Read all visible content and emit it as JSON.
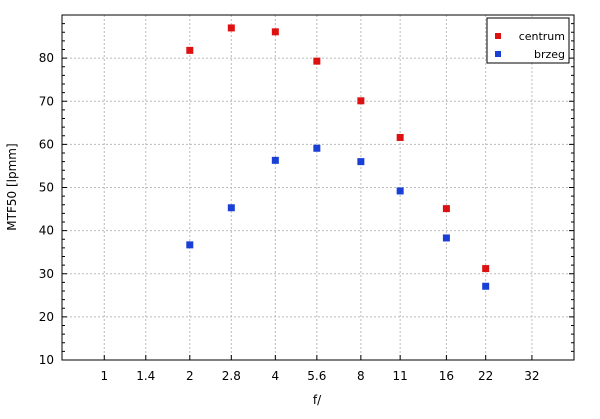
{
  "chart_data": {
    "type": "scatter",
    "title": "",
    "xlabel": "f/",
    "ylabel": "MTF50 [lpmm]",
    "x_scale": "log",
    "x_ticks": [
      "1",
      "1.4",
      "2",
      "2.8",
      "4",
      "5.6",
      "8",
      "11",
      "16",
      "22",
      "32"
    ],
    "xlim": [
      "0.71",
      "45"
    ],
    "ylim": [
      10,
      90
    ],
    "y_ticks": [
      10,
      20,
      30,
      40,
      50,
      60,
      70,
      80
    ],
    "grid": true,
    "legend_position": "top-right",
    "series": [
      {
        "name": "centrum",
        "color": "#dd1111",
        "x": [
          "2",
          "2.8",
          "4",
          "5.6",
          "8",
          "11",
          "16",
          "22"
        ],
        "y": [
          81.8,
          87.0,
          86.1,
          79.3,
          70.1,
          61.6,
          45.1,
          31.2
        ]
      },
      {
        "name": "brzeg",
        "color": "#1a3fd6",
        "x": [
          "2",
          "2.8",
          "4",
          "5.6",
          "8",
          "11",
          "16",
          "22"
        ],
        "y": [
          36.7,
          45.3,
          56.3,
          59.1,
          56.0,
          49.2,
          38.3,
          27.1
        ]
      }
    ]
  }
}
